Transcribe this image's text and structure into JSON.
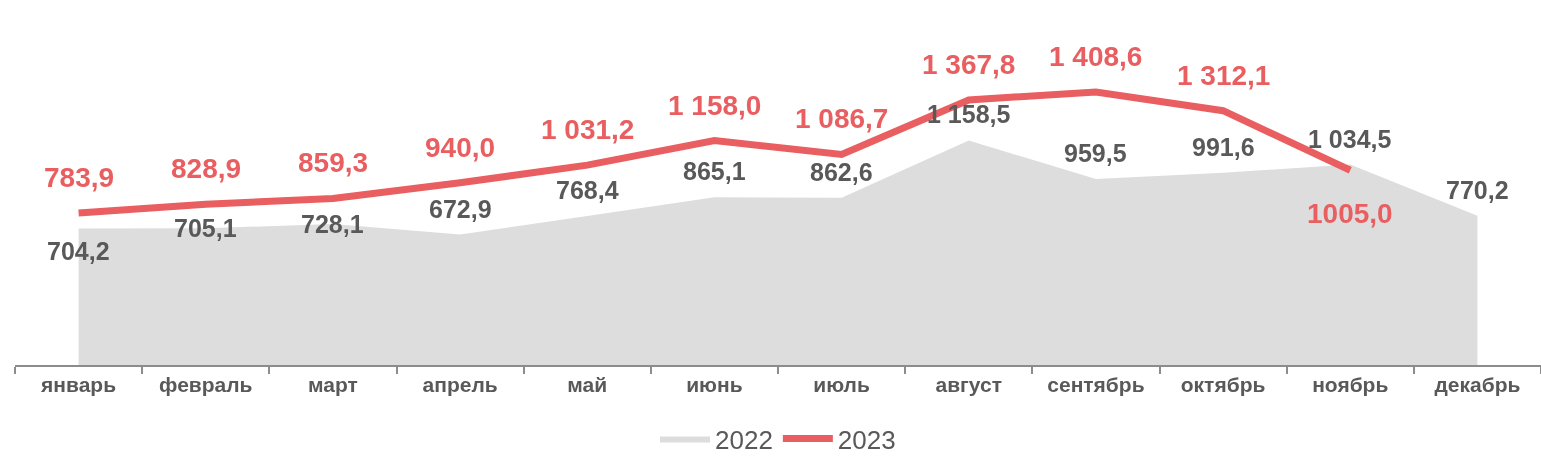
{
  "chart_data": {
    "type": "line",
    "categories": [
      "январь",
      "февраль",
      "март",
      "апрель",
      "май",
      "июнь",
      "июль",
      "август",
      "сентябрь",
      "октябрь",
      "ноябрь",
      "декабрь"
    ],
    "series": [
      {
        "name": "2022",
        "type": "area",
        "color": "#dddddd",
        "values": [
          704.2,
          705.1,
          728.1,
          672.9,
          768.4,
          865.1,
          862.6,
          1158.5,
          959.5,
          991.6,
          1034.5,
          770.2
        ],
        "value_labels": [
          "704,2",
          "705,1",
          "728,1",
          "672,9",
          "768,4",
          "865,1",
          "862,6",
          "1 158,5",
          "959,5",
          "991,6",
          "1 034,5",
          "770,2"
        ]
      },
      {
        "name": "2023",
        "color": "#e95e60",
        "values": [
          783.9,
          828.9,
          859.3,
          940.0,
          1031.2,
          1158.0,
          1086.7,
          1367.8,
          1408.6,
          1312.1,
          1005.0,
          null
        ],
        "value_labels": [
          "783,9",
          "828,9",
          "859,3",
          "940,0",
          "1 031,2",
          "1 158,0",
          "1 086,7",
          "1 367,8",
          "1 408,6",
          "1 312,1",
          "1005,0",
          null
        ]
      }
    ],
    "tick_labels": "x",
    "legend": "bottom"
  }
}
